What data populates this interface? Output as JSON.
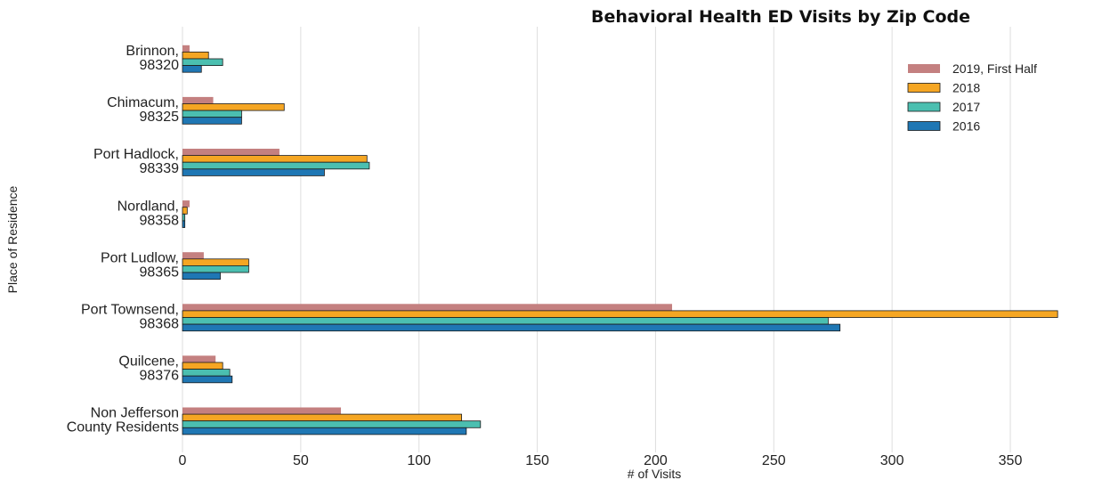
{
  "chart_data": {
    "type": "bar",
    "orientation": "horizontal",
    "title": "Behavioral Health ED Visits by Zip Code",
    "xlabel": "# of Visits",
    "ylabel": "Place of Residence",
    "xlim": [
      0,
      385
    ],
    "xticks": [
      0,
      50,
      100,
      150,
      200,
      250,
      300,
      350
    ],
    "grid": "vertical",
    "legend_position": "top-right",
    "categories": [
      [
        "Brinnon,",
        "98320"
      ],
      [
        "Chimacum,",
        "98325"
      ],
      [
        "Port Hadlock,",
        "98339"
      ],
      [
        "Nordland,",
        "98358"
      ],
      [
        "Port Ludlow,",
        "98365"
      ],
      [
        "Port Townsend,",
        "98368"
      ],
      [
        "Quilcene,",
        "98376"
      ],
      [
        "Non Jefferson",
        "County Residents"
      ]
    ],
    "series": [
      {
        "name": "2019, First Half",
        "color": "#c48080",
        "outline": false,
        "values": [
          3,
          13,
          41,
          3,
          9,
          207,
          14,
          67
        ]
      },
      {
        "name": "2018",
        "color": "#f5a623",
        "outline": true,
        "values": [
          11,
          43,
          78,
          2,
          28,
          370,
          17,
          118
        ]
      },
      {
        "name": "2017",
        "color": "#4bbfb0",
        "outline": true,
        "values": [
          17,
          25,
          79,
          1,
          28,
          273,
          20,
          126
        ]
      },
      {
        "name": "2016",
        "color": "#1f77b4",
        "outline": true,
        "values": [
          8,
          25,
          60,
          1,
          16,
          278,
          21,
          120
        ]
      }
    ]
  }
}
